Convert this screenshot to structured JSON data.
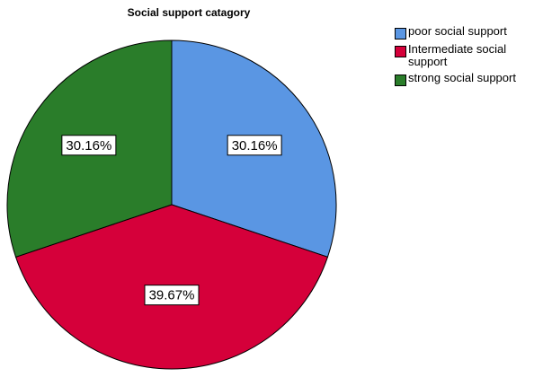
{
  "chart_data": {
    "type": "pie",
    "title": "Social support catagory",
    "categories": [
      "poor social support",
      "Intermediate social support",
      "strong social support"
    ],
    "values": [
      30.16,
      39.67,
      30.16
    ],
    "labels": [
      "30.16%",
      "39.67%",
      "30.16%"
    ],
    "colors": [
      "#5a96e3",
      "#d5003a",
      "#2a7d2a"
    ],
    "legend_placement": "top-right"
  }
}
